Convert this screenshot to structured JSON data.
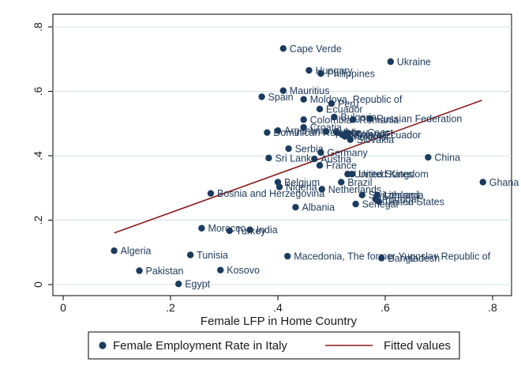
{
  "chart_data": {
    "type": "scatter",
    "title": "",
    "xlabel": "Female LFP in Home Country",
    "ylabel": "",
    "xlim": [
      0,
      0.8
    ],
    "ylim": [
      0,
      0.8
    ],
    "x_ticks": [
      0,
      0.2,
      0.4,
      0.6,
      0.8
    ],
    "x_tick_labels": [
      "0",
      ".2",
      ".4",
      ".6",
      ".8"
    ],
    "y_ticks": [
      0,
      0.2,
      0.4,
      0.6,
      0.8
    ],
    "y_tick_labels": [
      "0",
      ".2",
      ".4",
      ".6",
      ".8"
    ],
    "grid": true,
    "legend_position": "bottom",
    "colors": {
      "points": "#1b3b5f",
      "fit": "#8b1a1a",
      "grid": "#d6dfe6",
      "text": "#1f3a5a"
    },
    "series": [
      {
        "name": "Female Employment Rate in Italy",
        "type": "scatter",
        "points": [
          {
            "label": "Cape Verde",
            "x": 0.41,
            "y": 0.733
          },
          {
            "label": "Ukraine",
            "x": 0.61,
            "y": 0.692
          },
          {
            "label": "Hungary",
            "x": 0.458,
            "y": 0.665
          },
          {
            "label": "Philippines",
            "x": 0.48,
            "y": 0.655
          },
          {
            "label": "Mauritius",
            "x": 0.41,
            "y": 0.602
          },
          {
            "label": "Spain",
            "x": 0.37,
            "y": 0.583
          },
          {
            "label": "Moldova, Republic of",
            "x": 0.448,
            "y": 0.575
          },
          {
            "label": "Peru",
            "x": 0.5,
            "y": 0.562
          },
          {
            "label": "Ecuador",
            "x": 0.478,
            "y": 0.545
          },
          {
            "label": "Bulgaria",
            "x": 0.505,
            "y": 0.52
          },
          {
            "label": "Russian Federation",
            "x": 0.572,
            "y": 0.515
          },
          {
            "label": "Colombia",
            "x": 0.448,
            "y": 0.512
          },
          {
            "label": "Romania",
            "x": 0.54,
            "y": 0.512
          },
          {
            "label": "Croatia",
            "x": 0.448,
            "y": 0.488
          },
          {
            "label": "Argentina",
            "x": 0.4,
            "y": 0.478
          },
          {
            "label": "Dominican Republic",
            "x": 0.38,
            "y": 0.472
          },
          {
            "label": "Cuba",
            "x": 0.49,
            "y": 0.475
          },
          {
            "label": "Ivory Coast",
            "x": 0.51,
            "y": 0.472
          },
          {
            "label": "Poland",
            "x": 0.53,
            "y": 0.468
          },
          {
            "label": "Albania Ecuador",
            "x": 0.52,
            "y": 0.465
          },
          {
            "label": "Moldova",
            "x": 0.525,
            "y": 0.46
          },
          {
            "label": "Slovakia",
            "x": 0.535,
            "y": 0.45
          },
          {
            "label": "Serbia",
            "x": 0.42,
            "y": 0.422
          },
          {
            "label": "Germany",
            "x": 0.48,
            "y": 0.41
          },
          {
            "label": "China",
            "x": 0.68,
            "y": 0.395
          },
          {
            "label": "Sri Lanka",
            "x": 0.383,
            "y": 0.393
          },
          {
            "label": "Austria",
            "x": 0.468,
            "y": 0.39
          },
          {
            "label": "France",
            "x": 0.478,
            "y": 0.37
          },
          {
            "label": "United States",
            "x": 0.53,
            "y": 0.343
          },
          {
            "label": "United Kingdom",
            "x": 0.538,
            "y": 0.343
          },
          {
            "label": "Ghana",
            "x": 0.782,
            "y": 0.318
          },
          {
            "label": "Belgium",
            "x": 0.4,
            "y": 0.318
          },
          {
            "label": "Brazil",
            "x": 0.518,
            "y": 0.318
          },
          {
            "label": "Nigeria",
            "x": 0.403,
            "y": 0.303
          },
          {
            "label": "Netherlands",
            "x": 0.482,
            "y": 0.296
          },
          {
            "label": "Bosnia and Herzegovina",
            "x": 0.275,
            "y": 0.283
          },
          {
            "label": "Switzerland",
            "x": 0.557,
            "y": 0.278
          },
          {
            "label": "Lithuania",
            "x": 0.585,
            "y": 0.278
          },
          {
            "label": "Portugal",
            "x": 0.582,
            "y": 0.265
          },
          {
            "label": "United States",
            "x": 0.588,
            "y": 0.258
          },
          {
            "label": "Senegal",
            "x": 0.545,
            "y": 0.25
          },
          {
            "label": "Albania",
            "x": 0.433,
            "y": 0.24
          },
          {
            "label": "Morocco",
            "x": 0.258,
            "y": 0.175
          },
          {
            "label": "India",
            "x": 0.348,
            "y": 0.17
          },
          {
            "label": "Turkey",
            "x": 0.31,
            "y": 0.167
          },
          {
            "label": "Algeria",
            "x": 0.095,
            "y": 0.105
          },
          {
            "label": "Tunisia",
            "x": 0.237,
            "y": 0.092
          },
          {
            "label": "Macedonia, The former Yugoslav Republic of",
            "x": 0.418,
            "y": 0.088
          },
          {
            "label": "Bangladesh",
            "x": 0.593,
            "y": 0.082
          },
          {
            "label": "Pakistan",
            "x": 0.142,
            "y": 0.043
          },
          {
            "label": "Kosovo",
            "x": 0.293,
            "y": 0.045
          },
          {
            "label": "Egypt",
            "x": 0.215,
            "y": 0.002
          }
        ]
      },
      {
        "name": "Fitted values",
        "type": "line",
        "points": [
          {
            "x": 0.095,
            "y": 0.16
          },
          {
            "x": 0.78,
            "y": 0.572
          }
        ]
      }
    ]
  }
}
